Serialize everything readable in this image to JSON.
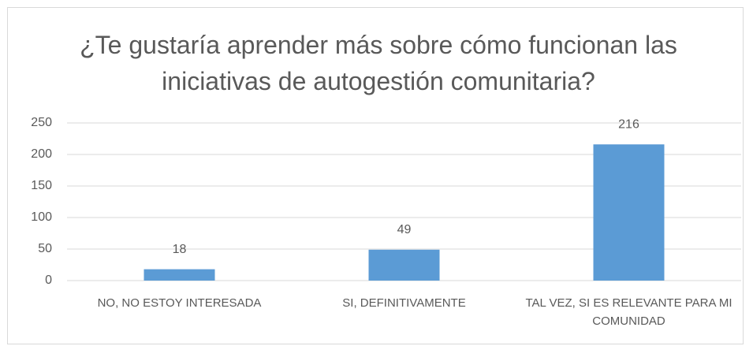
{
  "chart_data": {
    "type": "bar",
    "title": "¿Te gustaría aprender más sobre cómo funcionan las iniciativas de autogestión comunitaria?",
    "categories": [
      "NO, NO ESTOY INTERESADA",
      "SI, DEFINITIVAMENTE",
      "TAL VEZ, SI ES RELEVANTE PARA MI COMUNIDAD"
    ],
    "values": [
      18,
      49,
      216
    ],
    "color": "#5b9bd5",
    "ylim": [
      0,
      250
    ],
    "yticks": [
      0,
      50,
      100,
      150,
      200,
      250
    ],
    "grid": true
  }
}
